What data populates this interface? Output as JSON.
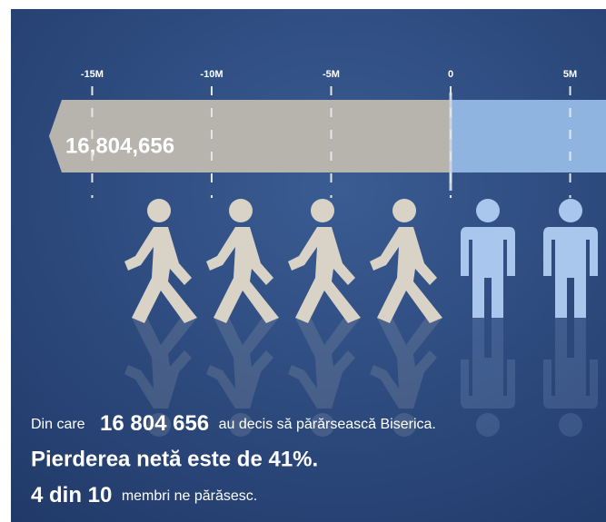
{
  "chart_data": {
    "type": "bar",
    "orientation": "horizontal",
    "values": [
      -16804656
    ],
    "value_labels": [
      "16,804,656"
    ],
    "color": "#b7b3ad",
    "xlim": [
      -18400000,
      6500000
    ],
    "xticks": [
      {
        "value": -15000000,
        "label": "-15M"
      },
      {
        "value": -10000000,
        "label": "-10M"
      },
      {
        "value": -5000000,
        "label": "-5M"
      },
      0,
      {
        "value": 5000000,
        "label": "5M"
      }
    ]
  },
  "caption": {
    "line1": [
      "Din care",
      "16 804 656",
      "au decis să părărsească Biserica."
    ],
    "line2": "Pierderea netă este de 41%.",
    "line3": [
      "4 din 10",
      "membri ne părăsesc."
    ]
  }
}
